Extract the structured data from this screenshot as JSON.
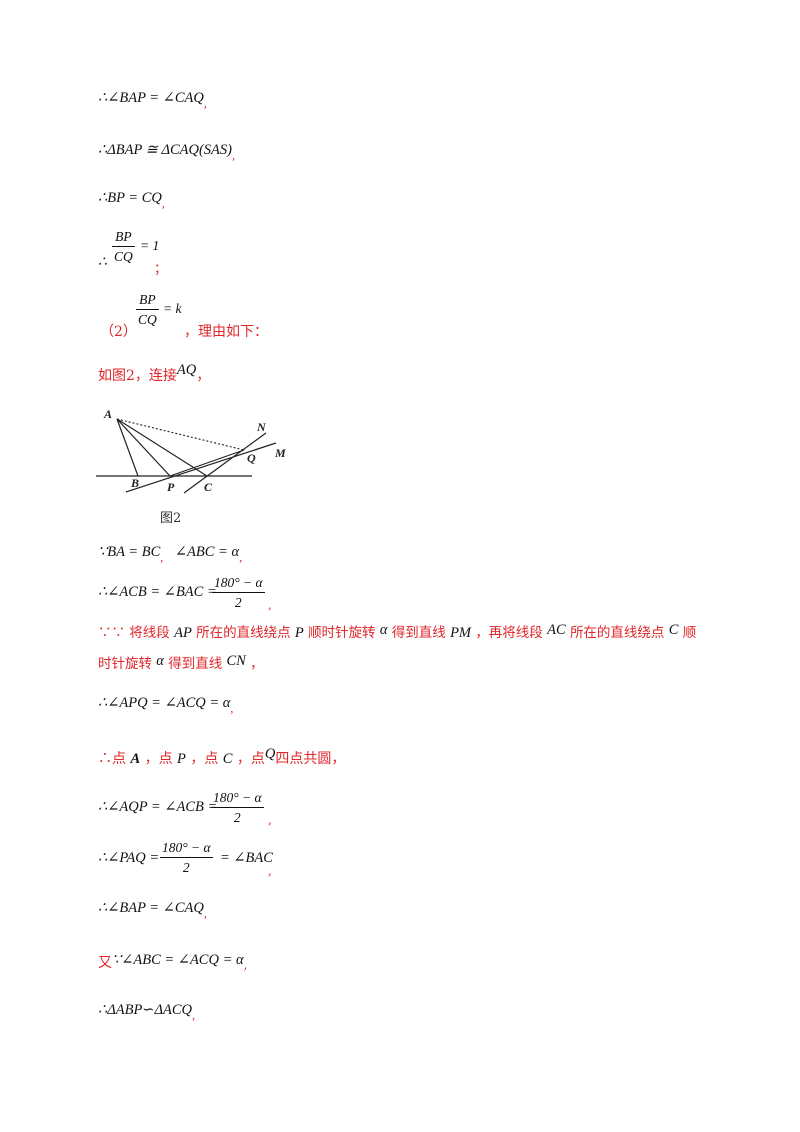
{
  "lines": {
    "l1": "∴∠BAP = ∠CAQ",
    "l2": "∴ΔBAP ≅ ΔCAQ(SAS)",
    "l3": "∴BP = CQ",
    "l4_prefix": "∴",
    "l4_num": "BP",
    "l4_den": "CQ",
    "l4_rhs": "= 1",
    "l4_end": "；",
    "part2_label": "（2）",
    "part2_num": "BP",
    "part2_den": "CQ",
    "part2_rhs": "= k",
    "part2_reason": "，理由如下：",
    "fig_intro": "如图2，连接",
    "fig_intro_math": "AQ",
    "fig_intro_end": "，",
    "because1": "∵BA = BC",
    "because1b": "∠ABC = α",
    "acb_prefix": "∴∠ACB = ∠BAC =",
    "acb_num": "180° − α",
    "acb_den": "2",
    "rot1_a": "∵∵ 将线段",
    "rot1_ap": "AP",
    "rot1_b": "所在的直线绕点",
    "rot1_p": "P",
    "rot1_c": "顺时针旋转",
    "rot1_alpha": "α",
    "rot1_d": "得到直线",
    "rot1_pm": "PM",
    "rot1_e": "，再将线段",
    "rot1_ac": "AC",
    "rot1_f": "所在的直线绕点",
    "rot1_cpt": "C",
    "rot1_g": "顺",
    "rot2_a": "时针旋转",
    "rot2_alpha": "α",
    "rot2_b": "得到直线",
    "rot2_cn": "CN",
    "rot2_end": "，",
    "apq": "∴∠APQ = ∠ACQ = α",
    "concyclic_a": "∴点",
    "concyclic_A": "A",
    "concyclic_b": "，点",
    "concyclic_P": "P",
    "concyclic_c": "，点",
    "concyclic_C": "C",
    "concyclic_d": "，点",
    "concyclic_Q": "Q",
    "concyclic_e": "四点共圆，",
    "aqp_prefix": "∴∠AQP = ∠ACB =",
    "aqp_num": "180° − α",
    "aqp_den": "2",
    "paq_prefix": "∴∠PAQ =",
    "paq_num": "180° − α",
    "paq_den": "2",
    "paq_rhs": "= ∠BAC",
    "bap2": "∴∠BAP = ∠CAQ",
    "also_a": "又",
    "also_b": "∵∠ABC = ∠ACQ = α",
    "similar": "∴ΔABP∽ΔACQ",
    "comma": ","
  },
  "figure": {
    "caption": "图2",
    "labels": {
      "A": "A",
      "B": "B",
      "P": "P",
      "C": "C",
      "Q": "Q",
      "N": "N",
      "M": "M"
    }
  }
}
